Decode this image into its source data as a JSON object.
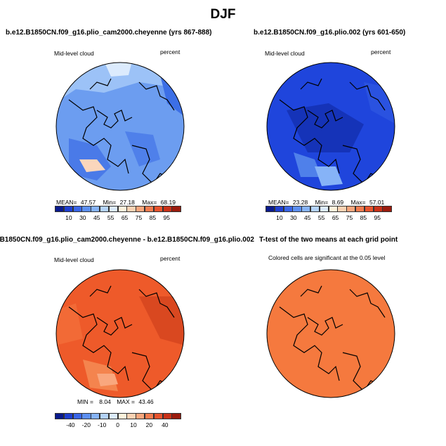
{
  "title": "DJF",
  "panels": [
    {
      "id": "p1",
      "title": "b.e12.B1850CN.f09_g16.plio_cam2000.cheyenne (yrs 867-888)",
      "left_label": "Mid-level cloud",
      "right_label": "percent",
      "stats": {
        "mean_label": "MEAN=",
        "mean": "47.57",
        "min_label": "Min=",
        "min": "27.18",
        "max_label": "Max=",
        "max": "68.19"
      },
      "colorbar": {
        "colors": [
          "#0a1a8c",
          "#1f3fd0",
          "#3a66e8",
          "#5c8ff2",
          "#86b3f7",
          "#b4d3fa",
          "#dcebfd",
          "#fff3dc",
          "#fcd3b4",
          "#f9a77e",
          "#f47c50",
          "#e8542e",
          "#c93218",
          "#9b1c0e"
        ],
        "tick_labels": [
          "10",
          "30",
          "45",
          "55",
          "65",
          "75",
          "85",
          "95"
        ]
      }
    },
    {
      "id": "p2",
      "title": "b.e12.B1850CN.f09_g16.plio.002 (yrs 601-650)",
      "left_label": "Mid-level cloud",
      "right_label": "percent",
      "stats": {
        "mean_label": "MEAN=",
        "mean": "23.28",
        "min_label": "Min=",
        "min": "8.69",
        "max_label": "Max=",
        "max": "57.01"
      },
      "colorbar": {
        "colors": [
          "#0a1a8c",
          "#1f3fd0",
          "#3a66e8",
          "#5c8ff2",
          "#86b3f7",
          "#b4d3fa",
          "#dcebfd",
          "#fff3dc",
          "#fcd3b4",
          "#f9a77e",
          "#f47c50",
          "#e8542e",
          "#c93218",
          "#9b1c0e"
        ],
        "tick_labels": [
          "10",
          "30",
          "45",
          "55",
          "65",
          "75",
          "85",
          "95"
        ]
      }
    },
    {
      "id": "p3",
      "title": "B1850CN.f09_g16.plio_cam2000.cheyenne - b.e12.B1850CN.f09_g16.plio.002",
      "left_label": "Mid-level cloud",
      "right_label": "percent",
      "stats": {
        "min_label": "MIN =",
        "min": "8.04",
        "max_label": "MAX =",
        "max": "43.46"
      },
      "colorbar": {
        "colors": [
          "#0a1a8c",
          "#1f3fd0",
          "#3a66e8",
          "#5c8ff2",
          "#86b3f7",
          "#b4d3fa",
          "#dcebfd",
          "#fff3dc",
          "#fcd3b4",
          "#f9a77e",
          "#f47c50",
          "#e8542e",
          "#c93218",
          "#9b1c0e"
        ],
        "tick_labels": [
          "-40",
          "-20",
          "-10",
          "0",
          "10",
          "20",
          "40"
        ]
      }
    },
    {
      "id": "p4",
      "title": "T-test of the two means at each grid point",
      "left_label": "Colored cells are significant at the 0.05 level",
      "fill": "#f5793e"
    }
  ],
  "colors": {
    "p1_base": "#6c9df0",
    "p2_base": "#1f45dc",
    "p3_base": "#ee5a2a",
    "p4_base": "#f5793e",
    "coast": "#000000"
  }
}
